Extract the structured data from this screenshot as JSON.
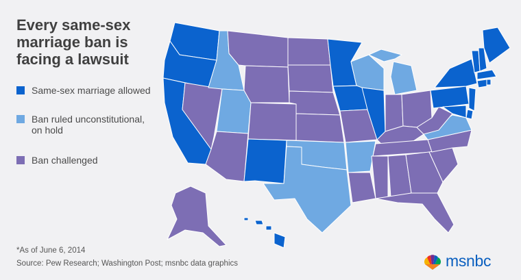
{
  "title": "Every same-sex marriage ban is facing a lawsuit",
  "colors": {
    "allowed": "#0b63ce",
    "ruled": "#6fa9e2",
    "challenged": "#7d6eb4",
    "background": "#f1f1f3",
    "logo": "#0a5fbf"
  },
  "legend": [
    {
      "label": "Same-sex marriage allowed",
      "color_key": "allowed"
    },
    {
      "label": "Ban ruled unconstitutional, on hold",
      "color_key": "ruled"
    },
    {
      "label": "Ban challenged",
      "color_key": "challenged"
    }
  ],
  "footnote": "*As of June 6, 2014",
  "source": "Source: Pew Research; Washington Post; msnbc data graphics",
  "logo": {
    "text": "msnbc",
    "icon": "peacock-icon"
  },
  "states": {
    "allowed": [
      "WA",
      "OR",
      "CA",
      "NM",
      "MN",
      "IA",
      "IL",
      "NY",
      "VT",
      "NH",
      "ME",
      "MA",
      "RI",
      "CT",
      "NJ",
      "PA",
      "DE",
      "MD",
      "HI"
    ],
    "ruled": [
      "ID",
      "UT",
      "TX",
      "OK",
      "WI",
      "MI",
      "VA",
      "AR"
    ],
    "challenged": [
      "NV",
      "AZ",
      "MT",
      "WY",
      "CO",
      "ND",
      "SD",
      "NE",
      "KS",
      "MO",
      "LA",
      "MS",
      "AL",
      "GA",
      "FL",
      "SC",
      "NC",
      "TN",
      "KY",
      "IN",
      "OH",
      "WV",
      "AK"
    ]
  }
}
